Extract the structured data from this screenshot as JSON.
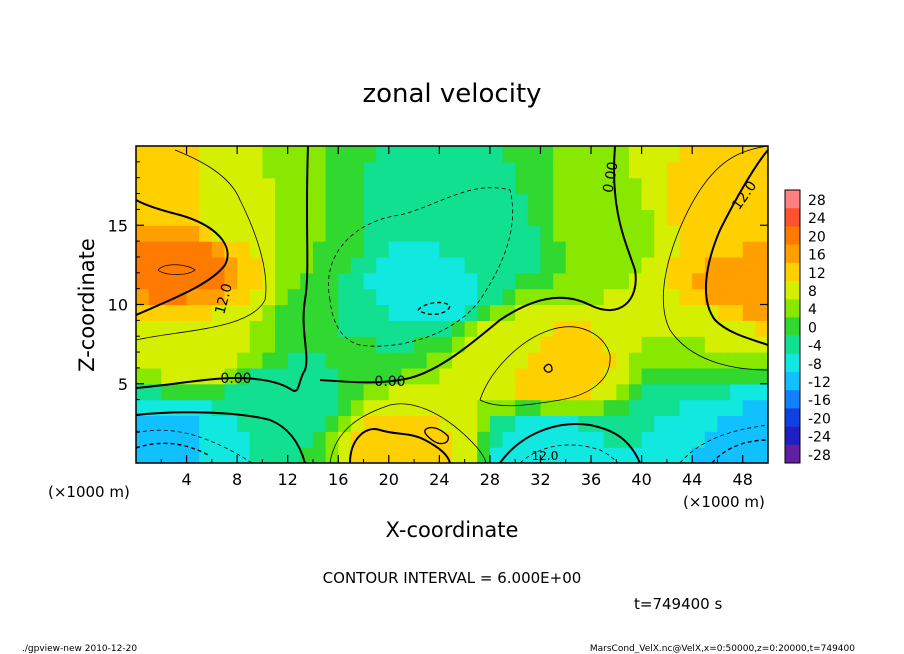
{
  "chart_data": {
    "type": "heatmap",
    "title": "zonal velocity",
    "xlabel": "X-coordinate",
    "ylabel": "Z-coordinate",
    "x_unit": "(×1000 m)",
    "x_unit_right": "(×1000 m)",
    "xlim": [
      0,
      50
    ],
    "ylim": [
      0,
      20
    ],
    "x_ticks": [
      4,
      8,
      12,
      16,
      20,
      24,
      28,
      32,
      36,
      40,
      44,
      48
    ],
    "y_ticks": [
      5,
      10,
      15
    ],
    "colorbar_levels": [
      28,
      24,
      20,
      16,
      12,
      8,
      4,
      0,
      -4,
      -8,
      -12,
      -16,
      -20,
      -24,
      -28
    ],
    "colorbar_colors": [
      "#ff8080",
      "#ff5030",
      "#ff7a00",
      "#ffa000",
      "#ffd000",
      "#d4f000",
      "#88e800",
      "#30d830",
      "#10e090",
      "#10e8e0",
      "#10c0ff",
      "#1080ff",
      "#1040e0",
      "#2020c0",
      "#6020a0"
    ],
    "contour_labels": [
      "12.0",
      "0.00",
      "0.00",
      "12.0",
      "0.00",
      "12.0"
    ],
    "contour_interval_text": "CONTOUR INTERVAL = 6.000E+00",
    "time_text": "t=749400 s",
    "blobs": [
      {
        "x": 3.5,
        "z": 12.5,
        "v": 20
      },
      {
        "x": 1.5,
        "z": 17,
        "v": 12
      },
      {
        "x": 5,
        "z": 7,
        "v": 8
      },
      {
        "x": 8,
        "z": 16,
        "v": 8
      },
      {
        "x": 14,
        "z": 16,
        "v": 2
      },
      {
        "x": 23,
        "z": 11,
        "v": -10
      },
      {
        "x": 22,
        "z": 16,
        "v": -6
      },
      {
        "x": 28,
        "z": 14,
        "v": -4
      },
      {
        "x": 33,
        "z": 6,
        "v": 14
      },
      {
        "x": 30,
        "z": 7,
        "v": 8
      },
      {
        "x": 37,
        "z": 15,
        "v": 4
      },
      {
        "x": 48,
        "z": 11,
        "v": 16
      },
      {
        "x": 46,
        "z": 16,
        "v": 12
      },
      {
        "x": 45,
        "z": 8,
        "v": 6
      },
      {
        "x": 3,
        "z": 1.5,
        "v": -12
      },
      {
        "x": 8,
        "z": 2,
        "v": -6
      },
      {
        "x": 12,
        "z": 4,
        "v": -4
      },
      {
        "x": 21,
        "z": 1,
        "v": 12
      },
      {
        "x": 23,
        "z": 1.5,
        "v": 10
      },
      {
        "x": 32,
        "z": 1,
        "v": -10
      },
      {
        "x": 48,
        "z": 1.5,
        "v": -14
      },
      {
        "x": 44,
        "z": 3,
        "v": -6
      },
      {
        "x": 17,
        "z": 8,
        "v": -2
      }
    ]
  },
  "footer": {
    "left": "./gpview-new   2010-12-20",
    "right": "MarsCond_VelX.nc@VelX,x=0:50000,z=0:20000,t=749400"
  }
}
